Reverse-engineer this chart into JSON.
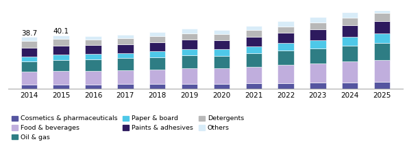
{
  "years": [
    2014,
    2015,
    2016,
    2017,
    2018,
    2019,
    2020,
    2021,
    2022,
    2023,
    2024,
    2025
  ],
  "categories": [
    "Cosmetics & pharmaceuticals",
    "Food & beverages",
    "Oil & gas",
    "Paper & board",
    "Paints & adhesives",
    "Detergents",
    "Others"
  ],
  "colors": [
    "#5555a0",
    "#c0aedd",
    "#2e7d84",
    "#4ec8e8",
    "#2d1a5e",
    "#b8b8b8",
    "#d8ecf8"
  ],
  "data": {
    "Cosmetics & pharmaceuticals": [
      3.2,
      3.4,
      3.5,
      3.6,
      3.7,
      3.9,
      4.0,
      4.2,
      4.5,
      4.7,
      5.0,
      5.3
    ],
    "Food & beverages": [
      9.5,
      10.0,
      10.2,
      10.5,
      11.0,
      11.5,
      11.5,
      12.5,
      13.5,
      14.5,
      15.5,
      16.5
    ],
    "Oil & gas": [
      8.0,
      8.3,
      8.5,
      8.8,
      9.0,
      9.5,
      9.2,
      9.8,
      10.5,
      11.0,
      11.8,
      12.5
    ],
    "Paper & board": [
      3.5,
      3.7,
      3.9,
      4.0,
      4.5,
      5.0,
      4.8,
      5.2,
      5.7,
      6.2,
      6.8,
      7.3
    ],
    "Paints & adhesives": [
      6.5,
      6.8,
      6.5,
      6.6,
      6.8,
      7.0,
      6.8,
      7.2,
      7.5,
      8.0,
      8.5,
      9.0
    ],
    "Detergents": [
      5.0,
      5.0,
      4.2,
      4.3,
      4.5,
      4.7,
      4.5,
      4.8,
      5.0,
      5.3,
      5.5,
      5.8
    ],
    "Others": [
      3.0,
      2.9,
      2.7,
      2.8,
      3.0,
      3.2,
      3.0,
      3.3,
      3.6,
      3.9,
      4.2,
      4.6
    ]
  },
  "totals_label": [
    38.7,
    40.1,
    null,
    null,
    null,
    null,
    null,
    null,
    null,
    null,
    null,
    null
  ],
  "bar_width": 0.5,
  "ylim": [
    0,
    58
  ],
  "label_fontsize": 7.5,
  "legend_fontsize": 6.8,
  "tick_fontsize": 7.5
}
